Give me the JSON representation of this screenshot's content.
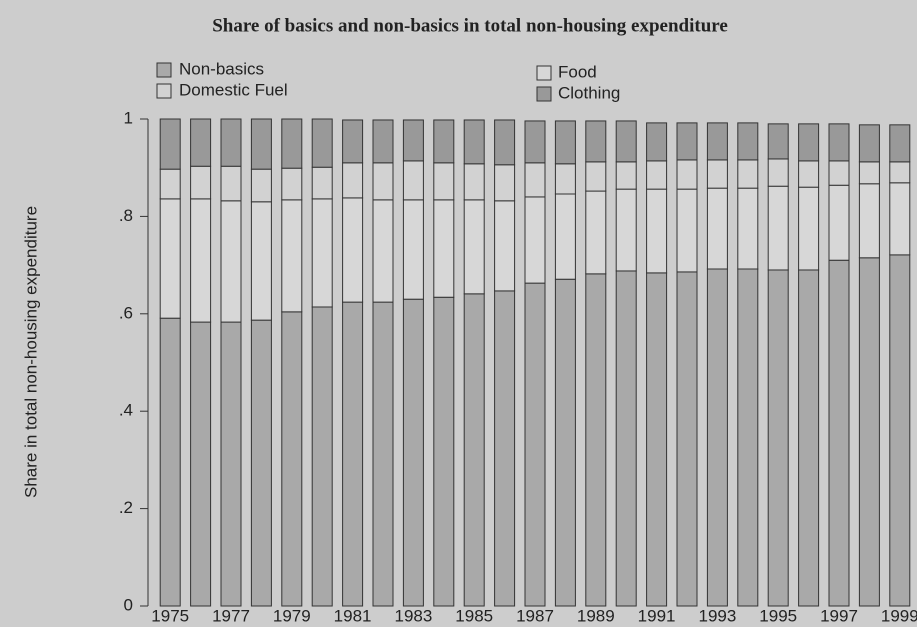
{
  "chart_data": {
    "type": "stacked_bar",
    "title": "Share of basics and non-basics in total non-housing expenditure",
    "y_label": "Share in total non-housing expenditure",
    "categories": [
      "1975",
      null,
      "1977",
      null,
      "1979",
      null,
      "1981",
      null,
      "1983",
      null,
      "1985",
      null,
      "1987",
      null,
      "1989",
      null,
      "1991",
      null,
      "1993",
      null,
      "1995",
      null,
      "1997",
      null,
      "1999"
    ],
    "series": [
      {
        "name": "Non-basics",
        "color": "#a9a9a9",
        "values": [
          0.591,
          0.583,
          0.583,
          0.587,
          0.604,
          0.614,
          0.624,
          0.624,
          0.63,
          0.634,
          0.641,
          0.647,
          0.663,
          0.671,
          0.682,
          0.688,
          0.684,
          0.686,
          0.692,
          0.692,
          0.69,
          0.69,
          0.71,
          0.715,
          0.721
        ]
      },
      {
        "name": "Food",
        "color": "#d7d7d7",
        "values": [
          0.245,
          0.253,
          0.249,
          0.243,
          0.23,
          0.222,
          0.214,
          0.21,
          0.204,
          0.2,
          0.193,
          0.185,
          0.177,
          0.175,
          0.17,
          0.168,
          0.172,
          0.17,
          0.166,
          0.166,
          0.172,
          0.17,
          0.154,
          0.152,
          0.148
        ]
      },
      {
        "name": "Domestic Fuel",
        "color": "#d2d2d2",
        "values": [
          0.061,
          0.067,
          0.071,
          0.067,
          0.065,
          0.065,
          0.072,
          0.076,
          0.08,
          0.076,
          0.074,
          0.074,
          0.07,
          0.062,
          0.06,
          0.056,
          0.058,
          0.06,
          0.058,
          0.058,
          0.056,
          0.054,
          0.05,
          0.045,
          0.043
        ]
      },
      {
        "name": "Clothing",
        "color": "#999999",
        "values": [
          0.103,
          0.097,
          0.097,
          0.103,
          0.101,
          0.099,
          0.088,
          0.088,
          0.084,
          0.088,
          0.09,
          0.092,
          0.086,
          0.088,
          0.084,
          0.084,
          0.078,
          0.076,
          0.076,
          0.076,
          0.072,
          0.076,
          0.076,
          0.076,
          0.076
        ]
      }
    ],
    "ylim": [
      0,
      1
    ],
    "yticks": [
      0,
      {
        "value": 0.2,
        "label": ".2"
      },
      {
        "value": 0.4,
        "label": ".4"
      },
      {
        "value": 0.6,
        "label": ".6"
      },
      {
        "value": 0.8,
        "label": ".8"
      },
      1
    ]
  }
}
